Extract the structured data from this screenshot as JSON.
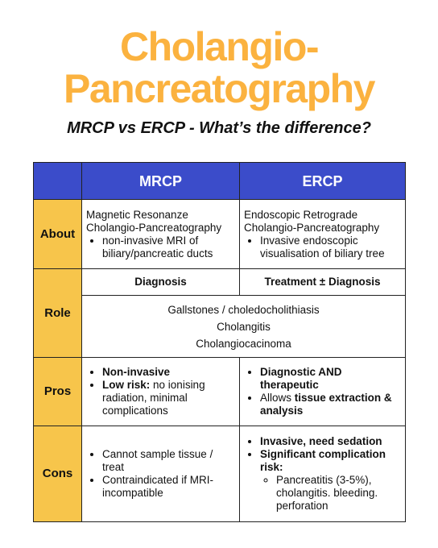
{
  "title": {
    "line1": "Cholangio-",
    "line2": "Pancreatography"
  },
  "subtitle": "MRCP vs ERCP - What’s the difference?",
  "table": {
    "header": [
      "MRCP",
      "ERCP"
    ],
    "about": {
      "label": "About",
      "mrcp": {
        "name": [
          "Magnetic Resonanze",
          "Cholangio-Pancreatography"
        ],
        "bullets": [
          "non-invasive MRI of biliary/pancreatic ducts"
        ]
      },
      "ercp": {
        "name": [
          "Endoscopic Retrograde",
          "Cholangio-Pancreatography"
        ],
        "bullets": [
          "Invasive endoscopic visualisation of biliary tree"
        ]
      }
    },
    "role": {
      "label": "Role",
      "mrcp": "Diagnosis",
      "ercp": "Treatment ± Diagnosis",
      "shared": [
        "Gallstones / choledocholithiasis",
        "Cholangitis",
        "Cholangiocacinoma"
      ]
    },
    "pros": {
      "label": "Pros",
      "mrcp": [
        [
          "Non-invasive"
        ],
        [
          "Low risk:",
          "no ionising radiation, minimal complications"
        ]
      ],
      "ercp": [
        [
          "Diagnostic AND therapeutic"
        ],
        [
          "Allows",
          "tissue extraction & analysis"
        ]
      ]
    },
    "cons": {
      "label": "Cons",
      "mrcp": [
        "Cannot sample tissue / treat",
        "Contraindicated if MRI-incompatible"
      ],
      "ercp": {
        "bullets": [
          "Invasive, need sedation",
          "Significant complication risk:"
        ],
        "sub": [
          "Pancreatitis (3-5%), cholangitis. bleeding. perforation"
        ]
      }
    }
  }
}
